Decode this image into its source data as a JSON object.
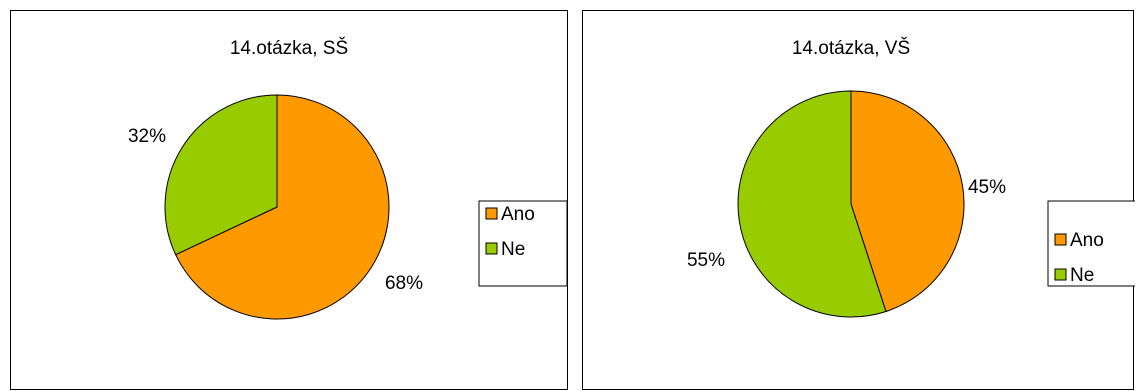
{
  "chart_data": [
    {
      "type": "pie",
      "title": "14.otázka, SŠ",
      "categories": [
        "Ano",
        "Ne"
      ],
      "values": [
        68,
        32
      ],
      "labels": [
        "68%",
        "32%"
      ],
      "colors": [
        "#FF9900",
        "#99CC00"
      ],
      "start_angle_deg": 0,
      "direction": "clockwise",
      "legend": "right"
    },
    {
      "type": "pie",
      "title": "14.otázka, VŠ",
      "categories": [
        "Ano",
        "Ne"
      ],
      "values": [
        45,
        55
      ],
      "labels": [
        "45%",
        "55%"
      ],
      "colors": [
        "#FF9900",
        "#99CC00"
      ],
      "start_angle_deg": 0,
      "direction": "clockwise",
      "legend": "right"
    }
  ]
}
